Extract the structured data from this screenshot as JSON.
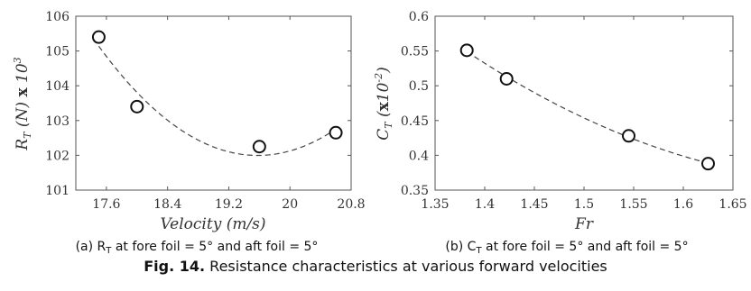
{
  "figure": {
    "label": "Fig. 14.",
    "text": " Resistance characteristics at various forward velocities"
  },
  "chart_data": [
    {
      "type": "scatter",
      "fit": "dashed-quadratic",
      "xlabel": "Velocity (m/s)",
      "ylabel": "R_T (N) x 10^3",
      "ylabel_parts": {
        "main": "R",
        "sub": "T",
        "mid": " (N) ",
        "x": "x",
        "ten": " 10",
        "sup": "3"
      },
      "xlim": [
        17.2,
        20.8
      ],
      "ylim": [
        101,
        106
      ],
      "x_ticks": [
        "17.6",
        "18.4",
        "19.2",
        "20",
        "20.8"
      ],
      "y_ticks": [
        "101",
        "102",
        "103",
        "104",
        "105",
        "106"
      ],
      "x": [
        17.5,
        18.0,
        19.6,
        20.6
      ],
      "y": [
        105.4,
        103.4,
        102.25,
        102.65
      ],
      "caption": {
        "pre": "(a) R",
        "sub": "T",
        "post": " at fore foil = 5° and aft foil = 5°"
      }
    },
    {
      "type": "scatter",
      "fit": "dashed-quadratic",
      "xlabel": "Fr",
      "ylabel": "C_T (x10^-2)",
      "ylabel_parts": {
        "main": "C",
        "sub": "T",
        "mid": " (",
        "x": "x",
        "ten": "10",
        "sup": "-2",
        "end": ")"
      },
      "xlim": [
        1.35,
        1.65
      ],
      "ylim": [
        0.35,
        0.6
      ],
      "x_ticks": [
        "1.35",
        "1.4",
        "1.45",
        "1.5",
        "1.55",
        "1.6",
        "1.65"
      ],
      "y_ticks": [
        "0.35",
        "0.4",
        "0.45",
        "0.5",
        "0.55",
        "0.6"
      ],
      "x": [
        1.382,
        1.422,
        1.545,
        1.625
      ],
      "y": [
        0.551,
        0.51,
        0.428,
        0.388
      ],
      "caption": {
        "pre": "(b) C",
        "sub": "T",
        "post": " at fore foil = 5° and aft foil = 5°"
      }
    }
  ]
}
